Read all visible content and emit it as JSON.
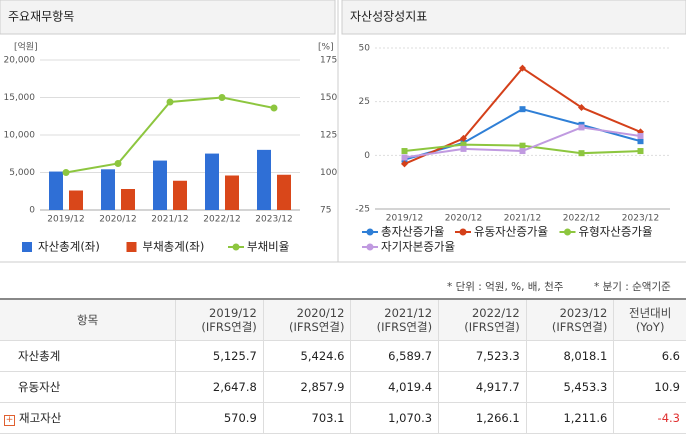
{
  "chart_data": [
    {
      "type": "bar",
      "title": "주요재무항목",
      "ylabel": "[억원]",
      "y2label": "[%]",
      "categories": [
        "2019/12",
        "2020/12",
        "2021/12",
        "2022/12",
        "2023/12"
      ],
      "ylim": [
        0,
        20000
      ],
      "yticks": [
        0,
        {
          "value": 5000,
          "label": "5,000"
        },
        {
          "value": 10000,
          "label": "10,000"
        },
        {
          "value": 15000,
          "label": "15,000"
        },
        {
          "value": 20000,
          "label": "20,000"
        }
      ],
      "y2lim": [
        75,
        175
      ],
      "y2ticks": [
        75,
        100,
        125,
        150,
        175
      ],
      "grid": true,
      "series": [
        {
          "name": "자산총계(좌)",
          "color": "#2f6fd6",
          "values": [
            5125.7,
            5424.6,
            6589.7,
            7523.3,
            8018.1
          ]
        },
        {
          "name": "부채총계(좌)",
          "color": "#d9471a",
          "values": [
            2600,
            2800,
            3900,
            4600,
            4700
          ]
        },
        {
          "name": "부채비율",
          "color": "#8dc63f",
          "type": "line",
          "axis": "y2",
          "values": [
            100,
            106,
            147,
            150,
            143
          ]
        }
      ]
    },
    {
      "type": "line",
      "title": "자산성장성지표",
      "categories": [
        "2019/12",
        "2020/12",
        "2021/12",
        "2022/12",
        "2023/12"
      ],
      "ylim": [
        -25,
        50
      ],
      "yticks": [
        -25,
        0,
        25,
        50
      ],
      "grid": true,
      "series": [
        {
          "name": "총자산증가율",
          "color": "#2f7fd6",
          "values": [
            -2,
            5.8,
            21.5,
            14.2,
            6.6
          ]
        },
        {
          "name": "유동자산증가율",
          "color": "#d4401a",
          "values": [
            -4,
            7.9,
            40.6,
            22.3,
            10.9
          ]
        },
        {
          "name": "유형자산증가율",
          "color": "#8dc63f",
          "values": [
            2,
            5,
            4.5,
            1,
            2
          ]
        },
        {
          "name": "자기자본증가율",
          "color": "#c09ae0",
          "values": [
            -1,
            3,
            2,
            13,
            9
          ]
        }
      ]
    }
  ],
  "notes": {
    "unit": "* 단위 : 억원, %, 배, 천주",
    "quarter": "* 분기 : 순액기준"
  },
  "table": {
    "header": [
      "항목",
      [
        "2019/12",
        "(IFRS연결)"
      ],
      [
        "2020/12",
        "(IFRS연결)"
      ],
      [
        "2021/12",
        "(IFRS연결)"
      ],
      [
        "2022/12",
        "(IFRS연결)"
      ],
      [
        "2023/12",
        "(IFRS연결)"
      ],
      [
        "전년대비",
        "(YoY)"
      ]
    ],
    "rows": [
      [
        "자산총계",
        "5,125.7",
        "5,424.6",
        "6,589.7",
        "7,523.3",
        "8,018.1",
        "6.6"
      ],
      [
        "유동자산",
        "2,647.8",
        "2,857.9",
        "4,019.4",
        "4,917.7",
        "5,453.3",
        "10.9"
      ],
      [
        "재고자산",
        "570.9",
        "703.1",
        "1,070.3",
        "1,266.1",
        "1,211.6",
        "-4.3"
      ]
    ]
  }
}
